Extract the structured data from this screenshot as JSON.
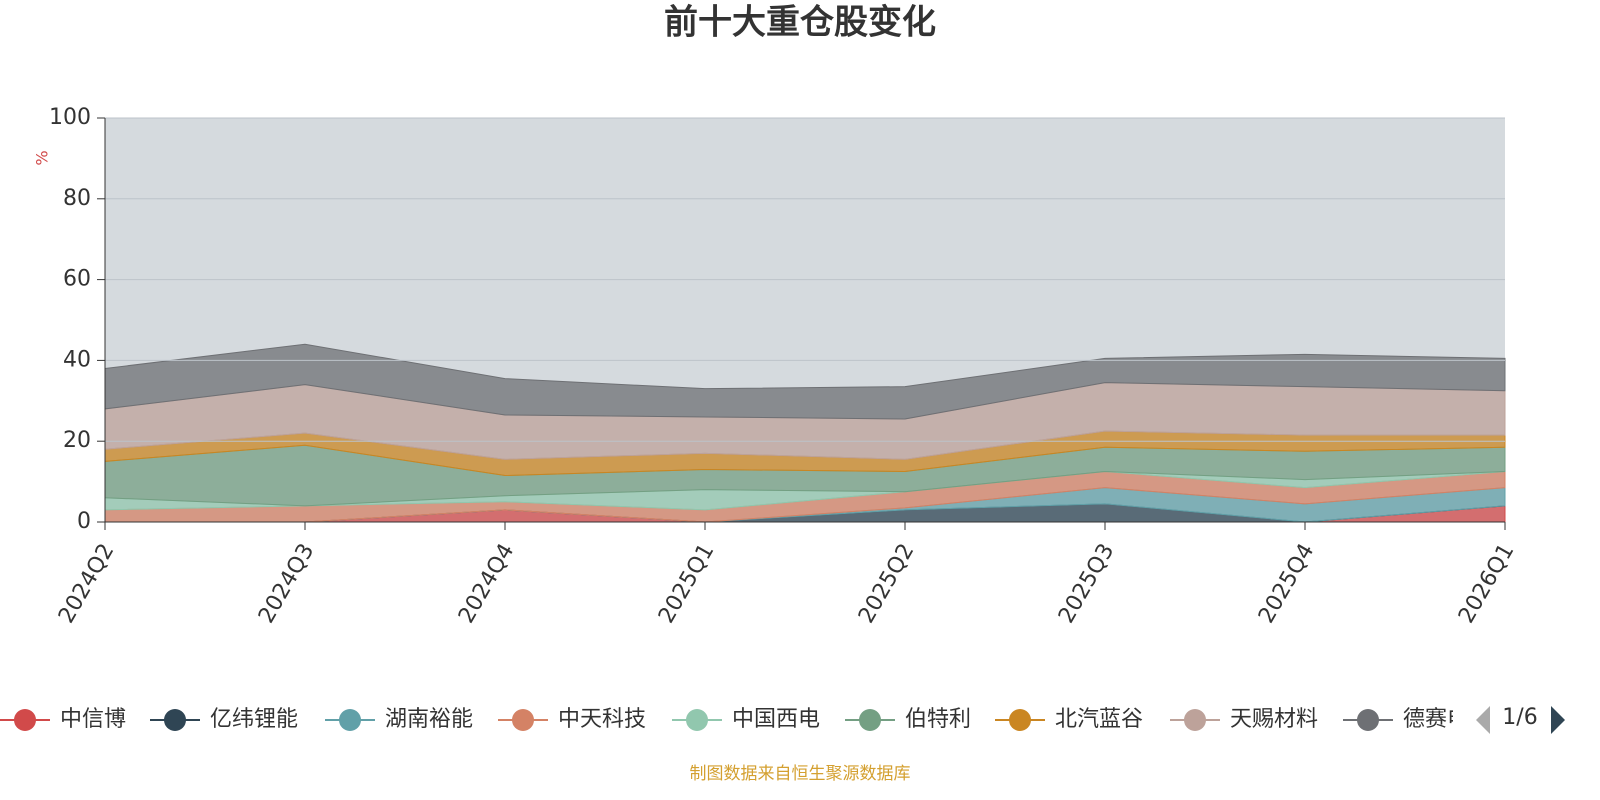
{
  "chart_data": {
    "type": "stacked-area",
    "title": "前十大重仓股变化",
    "y_label": "%",
    "categories": [
      "2024Q2",
      "2024Q3",
      "2024Q4",
      "2025Q1",
      "2025Q2",
      "2025Q3",
      "2025Q4",
      "2026Q1"
    ],
    "series": [
      {
        "name": "中信博",
        "color": "#d14a4a",
        "values": [
          0,
          0,
          3,
          0,
          0,
          0,
          0,
          4
        ]
      },
      {
        "name": "亿纬锂能",
        "color": "#2f4554",
        "values": [
          0,
          0,
          0,
          0,
          3,
          4.5,
          0,
          0
        ]
      },
      {
        "name": "湖南裕能",
        "color": "#61a0a8",
        "values": [
          0,
          0,
          0,
          0,
          0.5,
          4,
          4.5,
          4.5
        ]
      },
      {
        "name": "中天科技",
        "color": "#d48265",
        "values": [
          3,
          4,
          2,
          3,
          4,
          4,
          4,
          4
        ]
      },
      {
        "name": "中国西电",
        "color": "#91c7ae",
        "values": [
          3,
          0,
          1.5,
          5,
          0,
          0,
          2,
          0
        ]
      },
      {
        "name": "伯特利",
        "color": "#749f83",
        "values": [
          9,
          15,
          5,
          5,
          5,
          6,
          7,
          6
        ]
      },
      {
        "name": "北汽蓝谷",
        "color": "#ca8622",
        "values": [
          3,
          3,
          4,
          4,
          3,
          4,
          4,
          3
        ]
      },
      {
        "name": "天赐材料",
        "color": "#bda29a",
        "values": [
          10,
          12,
          11,
          9,
          10,
          12,
          12,
          11
        ]
      },
      {
        "name": "德赛电池",
        "color": "#6e7074",
        "values": [
          10,
          10,
          9,
          7,
          8,
          6,
          8,
          8
        ]
      }
    ],
    "ylim": [
      0,
      100
    ],
    "yticks": [
      0,
      20,
      40,
      60,
      80,
      100
    ],
    "grid": true,
    "legend_page": "1/6",
    "source": "制图数据来自恒生聚源数据库"
  }
}
